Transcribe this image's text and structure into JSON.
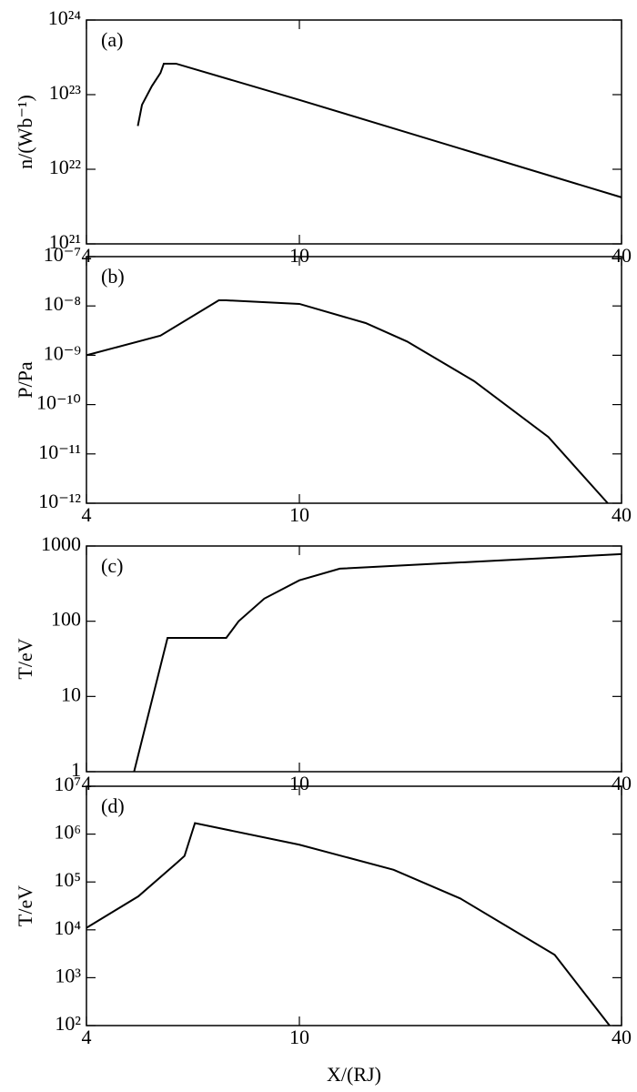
{
  "chart_data": [
    {
      "type": "line",
      "panel_label": "(a)",
      "y_label": "n/(Wb⁻¹)",
      "xscale": "log",
      "yscale": "log",
      "color": "#000000",
      "x": [
        4.99,
        5.08,
        5.3,
        5.5,
        5.58,
        5.88,
        10,
        40
      ],
      "values": [
        3.8e+22,
        7.3e+22,
        1.3e+23,
        1.95e+23,
        2.6e+23,
        2.6e+23,
        8.5e+22,
        4.2e+21
      ],
      "xlim": [
        4,
        40
      ],
      "xticks": [
        4,
        10,
        40
      ],
      "ylim": [
        1e+21,
        1e+24
      ],
      "yticks": [
        {
          "value": 1e+21,
          "label": "10²¹"
        },
        {
          "value": 1e+22,
          "label": "10²²"
        },
        {
          "value": 1e+23,
          "label": "10²³"
        },
        {
          "value": 1e+24,
          "label": "10²⁴"
        }
      ]
    },
    {
      "type": "line",
      "panel_label": "(b)",
      "y_label": "P/Pa",
      "xscale": "log",
      "yscale": "log",
      "color": "#000000",
      "x": [
        4,
        5.5,
        7.07,
        7.3,
        10,
        13.3,
        15.9,
        21.2,
        29.2,
        37.7
      ],
      "values": [
        1e-09,
        2.5e-09,
        1.3e-08,
        1.3e-08,
        1.1e-08,
        4.5e-09,
        1.9e-09,
        3e-10,
        2.2e-11,
        1e-12
      ],
      "xlim": [
        4,
        40
      ],
      "xticks": [
        4,
        10,
        40
      ],
      "ylim": [
        1e-12,
        1e-07
      ],
      "yticks": [
        {
          "value": 1e-12,
          "label": "10⁻¹²"
        },
        {
          "value": 1e-11,
          "label": "10⁻¹¹"
        },
        {
          "value": 1e-10,
          "label": "10⁻¹⁰"
        },
        {
          "value": 1e-09,
          "label": "10⁻⁹"
        },
        {
          "value": 1e-08,
          "label": "10⁻⁸"
        },
        {
          "value": 1e-07,
          "label": "10⁻⁷"
        }
      ]
    },
    {
      "type": "line",
      "panel_label": "(c)",
      "y_label": "T/eV",
      "xscale": "log",
      "yscale": "log",
      "color": "#000000",
      "x": [
        4.91,
        5.67,
        7.3,
        7.7,
        8.6,
        10,
        11.9,
        40
      ],
      "values": [
        1,
        60,
        60,
        100,
        200,
        350,
        500,
        780
      ],
      "xlim": [
        4,
        40
      ],
      "xticks": [
        4,
        10,
        40
      ],
      "ylim": [
        1,
        1000
      ],
      "yticks": [
        1,
        10,
        100,
        1000
      ]
    },
    {
      "type": "line",
      "panel_label": "(d)",
      "y_label": "T/eV",
      "x_label": "X/(RJ)",
      "xscale": "log",
      "yscale": "log",
      "color": "#000000",
      "x": [
        4,
        5,
        5.9,
        6.1,
        6.38,
        10,
        15,
        20,
        30,
        38
      ],
      "values": [
        11000.0,
        50000.0,
        250000.0,
        350000.0,
        1700000.0,
        600000.0,
        180000.0,
        45000.0,
        3000.0,
        100.0
      ],
      "xlim": [
        4,
        40
      ],
      "xticks": [
        4,
        10,
        40
      ],
      "ylim": [
        100.0,
        10000000.0
      ],
      "yticks": [
        {
          "value": 100.0,
          "label": "10²"
        },
        {
          "value": 1000.0,
          "label": "10³"
        },
        {
          "value": 10000.0,
          "label": "10⁴"
        },
        {
          "value": 100000.0,
          "label": "10⁵"
        },
        {
          "value": 1000000.0,
          "label": "10⁶"
        },
        {
          "value": 10000000.0,
          "label": "10⁷"
        }
      ]
    }
  ]
}
